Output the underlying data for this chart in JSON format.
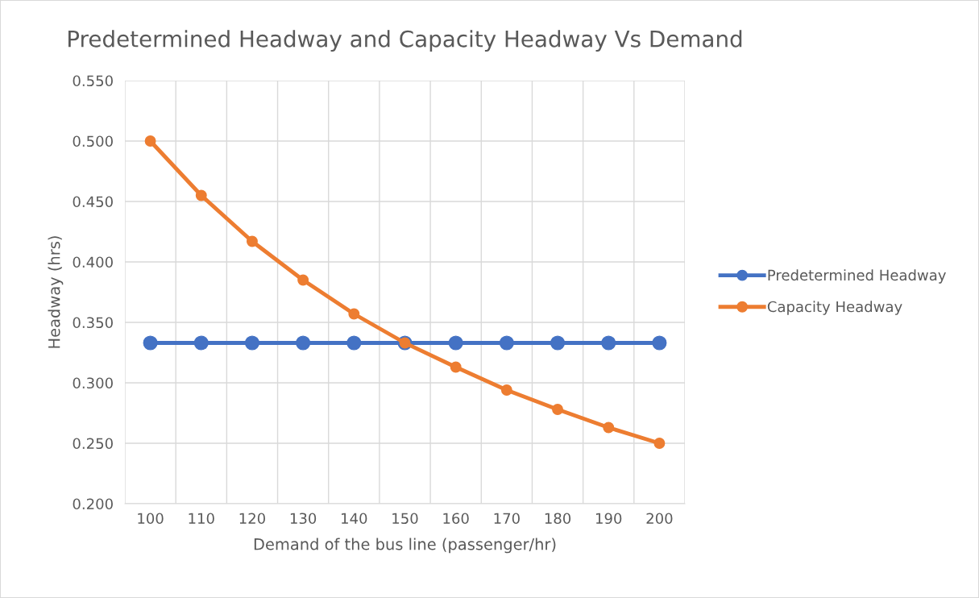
{
  "chart_data": {
    "type": "line",
    "title": "Predetermined Headway and Capacity Headway Vs Demand",
    "xlabel": "Demand of the bus line (passenger/hr)",
    "ylabel": "Headway (hrs)",
    "categories": [
      "100",
      "110",
      "120",
      "130",
      "140",
      "150",
      "160",
      "170",
      "180",
      "190",
      "200"
    ],
    "series": [
      {
        "name": "Predetermined Headway",
        "color": "#4472c4",
        "values": [
          0.333,
          0.333,
          0.333,
          0.333,
          0.333,
          0.333,
          0.333,
          0.333,
          0.333,
          0.333,
          0.333
        ]
      },
      {
        "name": "Capacity Headway",
        "color": "#ed7d31",
        "values": [
          0.5,
          0.455,
          0.417,
          0.385,
          0.357,
          0.333,
          0.313,
          0.294,
          0.278,
          0.263,
          0.25
        ]
      }
    ],
    "ylim": [
      0.2,
      0.55
    ],
    "yticks": [
      {
        "value": 0.2,
        "label": "0.200"
      },
      {
        "value": 0.25,
        "label": "0.250"
      },
      {
        "value": 0.3,
        "label": "0.300"
      },
      {
        "value": 0.35,
        "label": "0.350"
      },
      {
        "value": 0.4,
        "label": "0.400"
      },
      {
        "value": 0.45,
        "label": "0.450"
      },
      {
        "value": 0.5,
        "label": "0.500"
      },
      {
        "value": 0.55,
        "label": "0.550"
      }
    ],
    "grid": true,
    "legend": "right",
    "marker": "circle",
    "line_style": "solid"
  }
}
